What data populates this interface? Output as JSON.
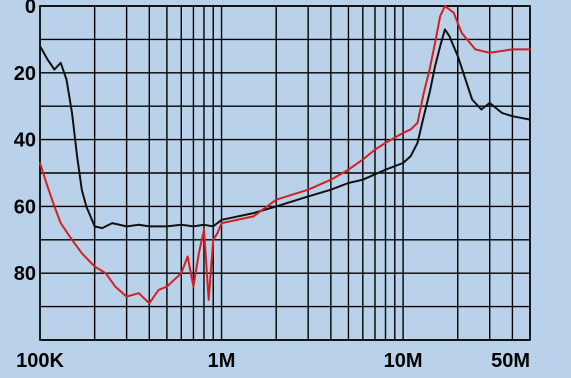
{
  "chart_data": {
    "type": "line",
    "title": "",
    "xlabel": "",
    "ylabel": "",
    "xscale": "log",
    "xlim": [
      100000,
      50000000
    ],
    "ylim": [
      0,
      100
    ],
    "y_inverted": true,
    "grid": true,
    "legend": "none",
    "x_tick_labels": [
      {
        "value": 100000,
        "label": "100K"
      },
      {
        "value": 1000000,
        "label": "1M"
      },
      {
        "value": 10000000,
        "label": "10M"
      },
      {
        "value": 50000000,
        "label": "50M"
      }
    ],
    "y_tick_labels": [
      {
        "value": 0,
        "label": "0"
      },
      {
        "value": 20,
        "label": "20"
      },
      {
        "value": 40,
        "label": "40"
      },
      {
        "value": 60,
        "label": "60"
      },
      {
        "value": 80,
        "label": "80"
      }
    ],
    "series": [
      {
        "color": "#111111",
        "points": [
          [
            100000,
            12
          ],
          [
            110000,
            16
          ],
          [
            120000,
            19
          ],
          [
            130000,
            17
          ],
          [
            140000,
            22
          ],
          [
            150000,
            32
          ],
          [
            160000,
            45
          ],
          [
            170000,
            55
          ],
          [
            180000,
            60
          ],
          [
            200000,
            66
          ],
          [
            220000,
            66.5
          ],
          [
            250000,
            65
          ],
          [
            300000,
            66
          ],
          [
            350000,
            65.5
          ],
          [
            400000,
            66
          ],
          [
            500000,
            66
          ],
          [
            600000,
            65.5
          ],
          [
            700000,
            66
          ],
          [
            800000,
            65.5
          ],
          [
            900000,
            66
          ],
          [
            1000000,
            64
          ],
          [
            1500000,
            62
          ],
          [
            2000000,
            60
          ],
          [
            3000000,
            57
          ],
          [
            4000000,
            55
          ],
          [
            5000000,
            53
          ],
          [
            6000000,
            52
          ],
          [
            8000000,
            49
          ],
          [
            10000000,
            47
          ],
          [
            11000000,
            45
          ],
          [
            12000000,
            41
          ],
          [
            13000000,
            33
          ],
          [
            14000000,
            26
          ],
          [
            15000000,
            18
          ],
          [
            16000000,
            12
          ],
          [
            17000000,
            7
          ],
          [
            18000000,
            9
          ],
          [
            20000000,
            15
          ],
          [
            24000000,
            28
          ],
          [
            27000000,
            31
          ],
          [
            30000000,
            29
          ],
          [
            35000000,
            32
          ],
          [
            40000000,
            33
          ],
          [
            50000000,
            34
          ]
        ]
      },
      {
        "color": "#d42020",
        "points": [
          [
            100000,
            47
          ],
          [
            110000,
            54
          ],
          [
            120000,
            60
          ],
          [
            130000,
            65
          ],
          [
            150000,
            70
          ],
          [
            170000,
            74
          ],
          [
            200000,
            78
          ],
          [
            230000,
            80
          ],
          [
            260000,
            84
          ],
          [
            300000,
            87
          ],
          [
            350000,
            86
          ],
          [
            400000,
            89
          ],
          [
            450000,
            85
          ],
          [
            500000,
            84
          ],
          [
            600000,
            80
          ],
          [
            650000,
            75
          ],
          [
            700000,
            84
          ],
          [
            750000,
            74
          ],
          [
            800000,
            67
          ],
          [
            850000,
            88
          ],
          [
            900000,
            70
          ],
          [
            950000,
            68
          ],
          [
            1000000,
            65
          ],
          [
            1500000,
            63
          ],
          [
            2000000,
            58
          ],
          [
            3000000,
            55
          ],
          [
            4000000,
            52
          ],
          [
            5000000,
            49
          ],
          [
            6000000,
            46
          ],
          [
            7000000,
            43
          ],
          [
            8000000,
            41
          ],
          [
            10000000,
            38
          ],
          [
            11000000,
            37
          ],
          [
            12000000,
            35
          ],
          [
            13000000,
            26
          ],
          [
            14000000,
            19
          ],
          [
            15000000,
            11
          ],
          [
            16000000,
            3
          ],
          [
            17000000,
            0
          ],
          [
            19000000,
            2
          ],
          [
            21000000,
            8
          ],
          [
            25000000,
            13
          ],
          [
            30000000,
            14
          ],
          [
            40000000,
            13
          ],
          [
            50000000,
            13
          ]
        ]
      }
    ]
  }
}
